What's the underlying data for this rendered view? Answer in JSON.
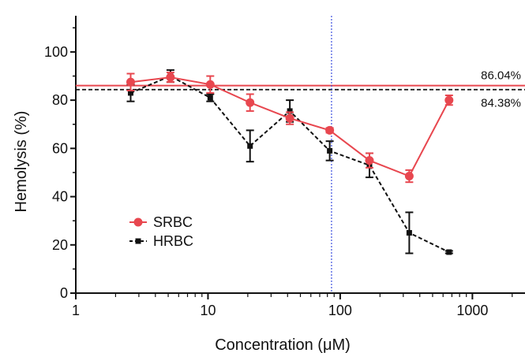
{
  "chart_data": {
    "type": "line",
    "xlabel": "Concentration (μM)",
    "ylabel": "Hemolysis (%)",
    "xscale": "log",
    "xlim": [
      1,
      2500
    ],
    "ylim": [
      0,
      115
    ],
    "x_ticks": [
      1,
      10,
      100,
      1000
    ],
    "y_ticks": [
      0,
      20,
      40,
      60,
      80,
      100
    ],
    "grid": false,
    "legend_position": "lower-left",
    "series": [
      {
        "name": "SRBC",
        "color": "#e8474f",
        "line_style": "solid",
        "marker": "circle",
        "x": [
          2.6,
          5.2,
          10.4,
          20.8,
          41.6,
          83.3,
          166.5,
          333,
          666
        ],
        "y": [
          87.5,
          89.5,
          86.5,
          79,
          72.5,
          67.5,
          55,
          48.5,
          80
        ],
        "error": [
          3.5,
          2,
          3.5,
          3.5,
          2.5,
          1,
          3,
          2.5,
          2
        ]
      },
      {
        "name": "HRBC",
        "color": "#111111",
        "line_style": "dashed",
        "marker": "square",
        "x": [
          2.6,
          5.2,
          10.4,
          20.8,
          41.6,
          83.3,
          166.5,
          333,
          666
        ],
        "y": [
          83,
          90,
          81,
          61,
          75.5,
          59,
          53,
          25,
          17
        ],
        "error": [
          3.5,
          2.5,
          1.5,
          6.5,
          4.5,
          4,
          5,
          8.5,
          0.5
        ]
      }
    ],
    "reference_lines": [
      {
        "orientation": "horizontal",
        "value": 86.04,
        "label": "86.04%",
        "color": "#e8474f",
        "line_style": "solid"
      },
      {
        "orientation": "horizontal",
        "value": 84.38,
        "label": "84.38%",
        "color": "#111111",
        "line_style": "dashed"
      },
      {
        "orientation": "vertical",
        "value": 86,
        "color": "#3b4fe0",
        "line_style": "dotted"
      }
    ]
  }
}
